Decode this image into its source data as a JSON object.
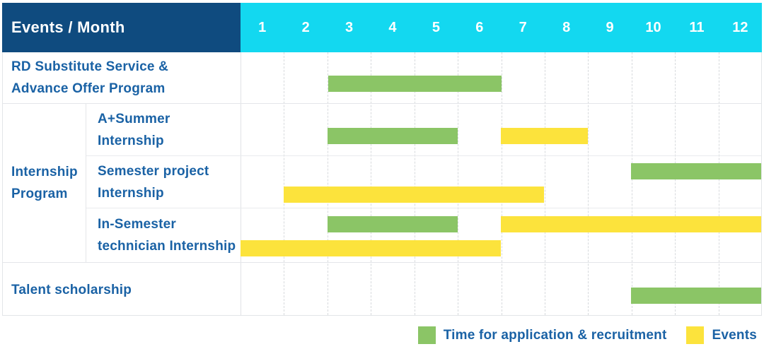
{
  "colors": {
    "header_bg": "#0f4b7f",
    "months_bg": "#13d8f0",
    "header_text": "#ffffff",
    "label_text": "#1a62a5",
    "green": "#8bc566",
    "yellow": "#fce33c",
    "grid_dashed_line": "#d7dadd",
    "row_line": "#e4e6e9"
  },
  "header": {
    "title": "Events / Month",
    "months": [
      "1",
      "2",
      "3",
      "4",
      "5",
      "6",
      "7",
      "8",
      "9",
      "10",
      "11",
      "12"
    ]
  },
  "legend": {
    "items": [
      {
        "label": "Time for application & recruitment",
        "color": "green"
      },
      {
        "label": "Events",
        "color": "yellow"
      }
    ]
  },
  "chart_data": {
    "type": "bar",
    "variant": "gantt",
    "x_unit": "month",
    "x_range": [
      1,
      12
    ],
    "x_ticks": [
      "1",
      "2",
      "3",
      "4",
      "5",
      "6",
      "7",
      "8",
      "9",
      "10",
      "11",
      "12"
    ],
    "end_month_inclusive": true,
    "bar_meaning": {
      "green": "Time for application & recruitment",
      "yellow": "Events"
    },
    "group_label": "Internship Program",
    "group_label_lines": [
      "Internship",
      "Program"
    ],
    "rows": [
      {
        "label": "RD Substitute Service & Advance Offer Program",
        "label_lines": [
          "RD Substitute Service &",
          "Advance Offer Program"
        ],
        "group": null,
        "bars": [
          {
            "color": "green",
            "start_month": 3,
            "end_month": 6,
            "lane": "center"
          }
        ]
      },
      {
        "label": "A+Summer Internship",
        "label_lines": [
          "A+Summer",
          "Internship"
        ],
        "group": "Internship Program",
        "bars": [
          {
            "color": "green",
            "start_month": 3,
            "end_month": 5,
            "lane": "center"
          },
          {
            "color": "yellow",
            "start_month": 7,
            "end_month": 8,
            "lane": "center"
          }
        ]
      },
      {
        "label": "Semester project Internship",
        "label_lines": [
          "Semester project",
          "Internship"
        ],
        "group": "Internship Program",
        "bars": [
          {
            "color": "green",
            "start_month": 10,
            "end_month": 12,
            "lane": "top"
          },
          {
            "color": "yellow",
            "start_month": 2,
            "end_month": 7,
            "lane": "bottom"
          }
        ]
      },
      {
        "label": "In-Semester technician Internship",
        "label_lines": [
          "In-Semester",
          "technician Internship"
        ],
        "group": "Internship Program",
        "bars": [
          {
            "color": "green",
            "start_month": 3,
            "end_month": 5,
            "lane": "top"
          },
          {
            "color": "yellow",
            "start_month": 7,
            "end_month": 12,
            "lane": "top"
          },
          {
            "color": "yellow",
            "start_month": 1,
            "end_month": 6,
            "lane": "bottom"
          }
        ]
      },
      {
        "label": "Talent scholarship",
        "label_lines": [
          "Talent scholarship"
        ],
        "group": null,
        "bars": [
          {
            "color": "green",
            "start_month": 10,
            "end_month": 12,
            "lane": "center"
          }
        ]
      }
    ]
  }
}
